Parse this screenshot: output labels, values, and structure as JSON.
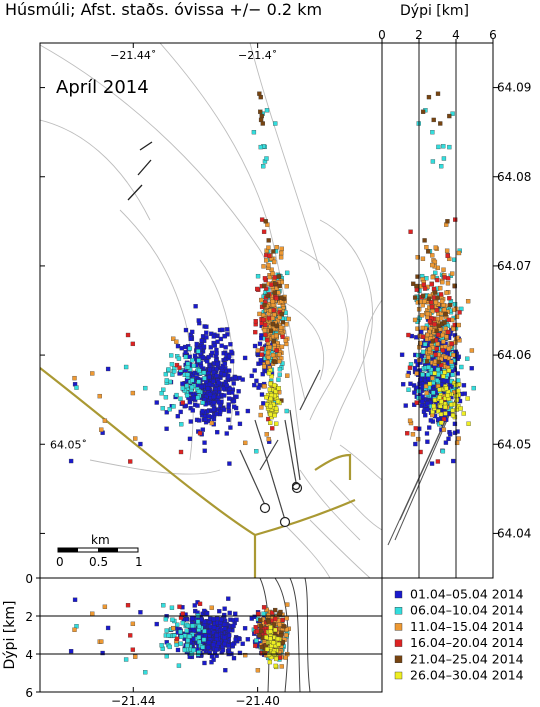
{
  "title": "Húsmúli; Afst. staðs. óvissa +/− 0.2 km",
  "month_label": "Apríl 2014",
  "scale_bar": {
    "unit": "km",
    "ticks": [
      "0",
      "0.5",
      "1"
    ]
  },
  "chart_data": [
    {
      "type": "scatter",
      "name": "map",
      "x_ticks": [
        "−21.44˚",
        "−21.4˚"
      ],
      "y_ticks": [
        "64.04",
        "64.05",
        "64.06",
        "64.07",
        "64.08",
        "64.09"
      ],
      "y_inline_label": "64.05˚",
      "xlim": [
        -21.47,
        -21.36
      ],
      "ylim": [
        64.035,
        64.095
      ],
      "series": [
        {
          "name": "01.04–05.04 2014",
          "color": "#1a1acc"
        },
        {
          "name": "06.04–10.04 2014",
          "color": "#33dddd"
        },
        {
          "name": "11.04–15.04 2014",
          "color": "#ee9933"
        },
        {
          "name": "16.04–20.04 2014",
          "color": "#dd2222"
        },
        {
          "name": "21.04–25.04 2014",
          "color": "#774411"
        },
        {
          "name": "26.04–30.04 2014",
          "color": "#eeee22"
        }
      ],
      "clusters": [
        {
          "series": 0,
          "lon": -21.415,
          "lat": 64.057,
          "slon": 0.0045,
          "slat": 0.0028,
          "n": 420
        },
        {
          "series": 0,
          "lon": -21.398,
          "lat": 64.06,
          "slon": 0.0015,
          "slat": 0.003,
          "n": 45
        },
        {
          "series": 1,
          "lon": -21.424,
          "lat": 64.057,
          "slon": 0.004,
          "slat": 0.0018,
          "n": 60
        },
        {
          "series": 1,
          "lon": -21.395,
          "lat": 64.064,
          "slon": 0.0022,
          "slat": 0.004,
          "n": 90
        },
        {
          "series": 1,
          "lon": -21.398,
          "lat": 64.083,
          "slon": 0.0018,
          "slat": 0.003,
          "n": 10
        },
        {
          "series": 2,
          "lon": -21.395,
          "lat": 64.064,
          "slon": 0.0022,
          "slat": 0.004,
          "n": 170
        },
        {
          "series": 3,
          "lon": -21.397,
          "lat": 64.066,
          "slon": 0.0025,
          "slat": 0.004,
          "n": 35
        },
        {
          "series": 4,
          "lon": -21.394,
          "lat": 64.066,
          "slon": 0.0022,
          "slat": 0.004,
          "n": 22
        },
        {
          "series": 4,
          "lon": -21.399,
          "lat": 64.087,
          "slon": 0.0006,
          "slat": 0.0015,
          "n": 6
        },
        {
          "series": 5,
          "lon": -21.395,
          "lat": 64.055,
          "slon": 0.0012,
          "slat": 0.0012,
          "n": 55
        }
      ]
    },
    {
      "type": "scatter",
      "name": "depth-vs-latitude",
      "xlabel": "Dýpi [km]",
      "x_ticks": [
        "0",
        "2",
        "4",
        "6"
      ],
      "xlim": [
        0,
        6
      ],
      "ylim": [
        64.035,
        64.095
      ],
      "reference_lines_x": [
        2,
        4
      ]
    },
    {
      "type": "scatter",
      "name": "depth-vs-longitude",
      "ylabel": "Dýpi [km]",
      "x_ticks": [
        "−21.44",
        "−21.40"
      ],
      "y_ticks": [
        "0",
        "2",
        "4",
        "6"
      ],
      "xlim": [
        -21.47,
        -21.36
      ],
      "ylim": [
        0,
        6
      ],
      "reference_lines_y": [
        2,
        4
      ]
    }
  ]
}
